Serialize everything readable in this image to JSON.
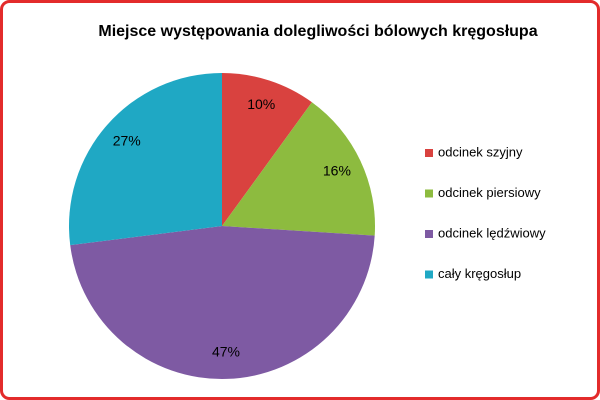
{
  "chart_data": {
    "type": "pie",
    "title": "Miejsce występowania dolegliwości bólowych kręgosłupa",
    "categories": [
      "odcinek szyjny",
      "odcinek piersiowy",
      "odcinek lędźwiowy",
      "cały kręgosłup"
    ],
    "values": [
      10,
      16,
      47,
      27
    ],
    "value_labels": [
      "10%",
      "16%",
      "47%",
      "27%"
    ],
    "colors": [
      "#d9423f",
      "#8dbb3f",
      "#7e5aa3",
      "#1fa8c4"
    ],
    "legend": "right"
  }
}
